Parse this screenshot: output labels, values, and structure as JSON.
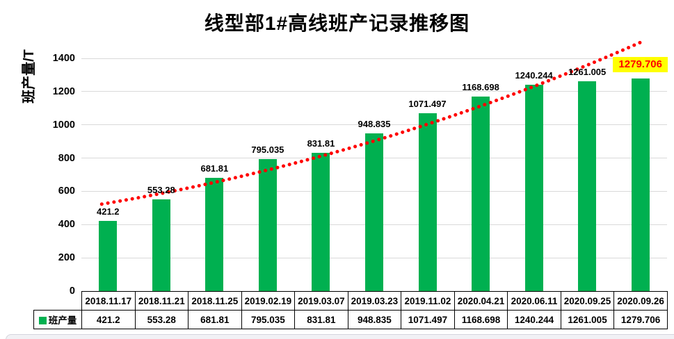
{
  "legend": {
    "label": "班产量",
    "swatch_color": "#00B050"
  },
  "window": {
    "bottom_band_fill": "#F1F1F5",
    "bottom_band_border": "#D4D4DD"
  },
  "chart_data": {
    "type": "bar",
    "title": "线型部1#高线班产记录推移图",
    "xlabel": "",
    "ylabel": "班产量/T",
    "categories": [
      "2018.11.17",
      "2018.11.21",
      "2018.11.25",
      "2019.02.19",
      "2019.03.07",
      "2019.03.23",
      "2019.11.02",
      "2020.04.21",
      "2020.06.11",
      "2020.09.25",
      "2020.09.26"
    ],
    "series": [
      {
        "name": "班产量",
        "color": "#00B050",
        "values": [
          421.2,
          553.28,
          681.81,
          795.035,
          831.81,
          948.835,
          1071.497,
          1168.698,
          1240.244,
          1261.005,
          1279.706
        ]
      }
    ],
    "ylim": [
      0,
      1400
    ],
    "ytick_step": 200,
    "yticks": [
      "0",
      "200",
      "400",
      "600",
      "800",
      "1000",
      "1200",
      "1400"
    ],
    "grid": true,
    "gridline_color": "#D9D9D9",
    "legend_position": "table-left",
    "label_color": "#000000",
    "highlighted_label": {
      "index": 10,
      "text_color": "#FF0000",
      "background": "#FFFF00"
    },
    "trendline": {
      "style": "dotted",
      "color": "#FF0000",
      "values_at": {
        "start": 523,
        "middle": 800,
        "end": 1496
      }
    }
  }
}
